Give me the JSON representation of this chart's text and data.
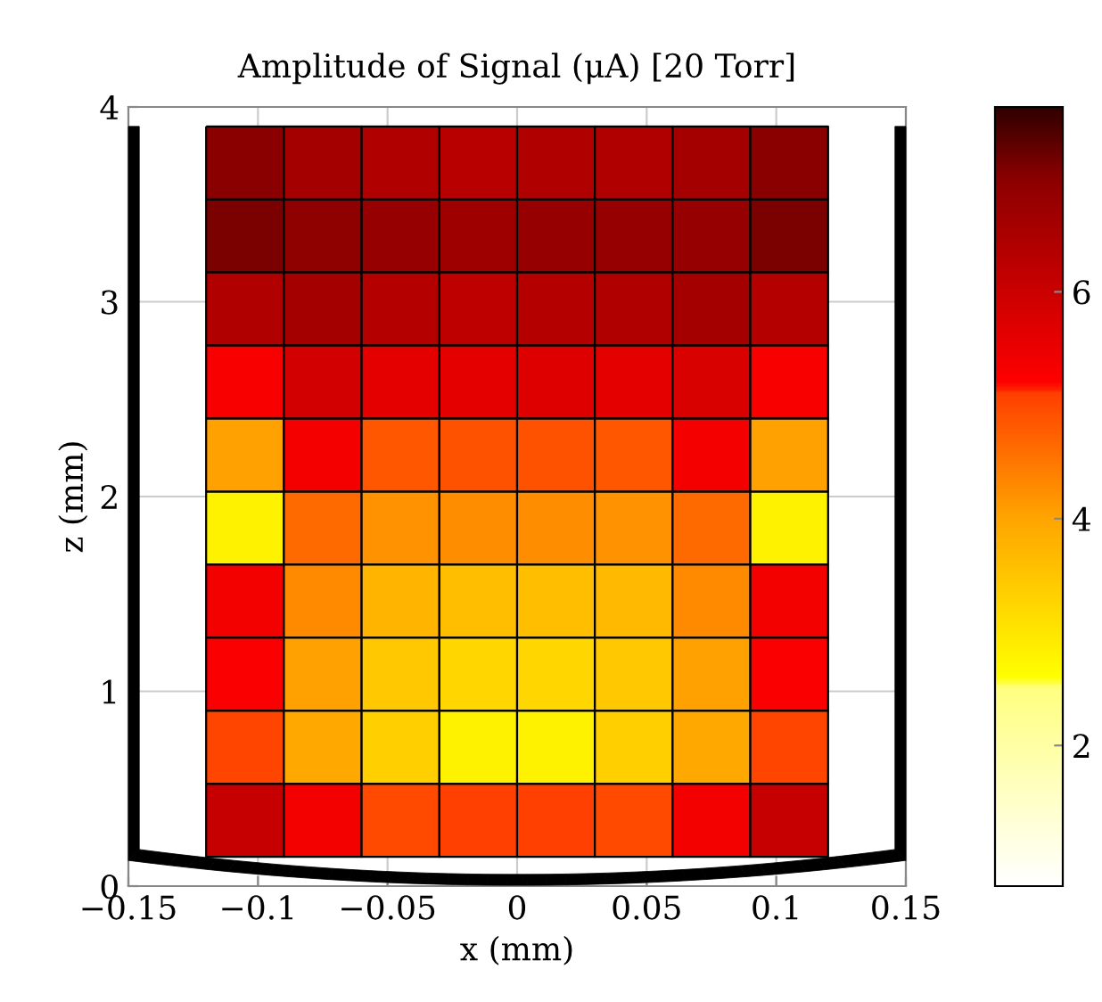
{
  "chart_data": {
    "type": "heatmap",
    "title": "Amplitude of Signal (μA) [20 Torr]",
    "xlabel": "x (mm)",
    "ylabel": "z (mm)",
    "x": [
      -0.105,
      -0.075,
      -0.045,
      -0.015,
      0.015,
      0.045,
      0.075,
      0.105
    ],
    "y": [
      3.7125,
      3.3375,
      2.9625,
      2.5875,
      2.2125,
      1.8375,
      1.4625,
      1.0875,
      0.7125,
      0.3375
    ],
    "cells": [
      [
        7.0,
        6.6,
        6.4,
        6.3,
        6.4,
        6.4,
        6.6,
        7.0
      ],
      [
        7.1,
        6.95,
        6.85,
        6.7,
        6.8,
        6.85,
        6.85,
        7.1
      ],
      [
        6.4,
        6.6,
        6.35,
        6.2,
        6.35,
        6.4,
        6.6,
        6.35
      ],
      [
        5.3,
        5.9,
        5.6,
        5.6,
        5.7,
        5.6,
        5.8,
        5.3
      ],
      [
        4.05,
        5.35,
        4.85,
        4.9,
        4.9,
        4.85,
        5.35,
        4.05
      ],
      [
        2.8,
        4.65,
        4.2,
        4.25,
        4.25,
        4.2,
        4.65,
        2.8
      ],
      [
        5.4,
        4.3,
        3.75,
        3.6,
        3.6,
        3.7,
        4.3,
        5.4
      ],
      [
        5.25,
        4.05,
        3.45,
        3.25,
        3.25,
        3.45,
        4.05,
        5.25
      ],
      [
        5.05,
        3.95,
        3.35,
        2.8,
        2.8,
        3.35,
        3.95,
        5.05
      ],
      [
        6.1,
        5.4,
        5.0,
        5.1,
        5.1,
        5.0,
        5.4,
        6.1
      ]
    ],
    "xlim": [
      -0.15,
      0.15
    ],
    "ylim": [
      0,
      4
    ],
    "xticks": [
      {
        "value": -0.15,
        "label": "−0.15"
      },
      {
        "value": -0.1,
        "label": "−0.1"
      },
      {
        "value": -0.05,
        "label": "−0.05"
      },
      0,
      0.05,
      0.1,
      0.15
    ],
    "yticks": [
      0,
      1,
      2,
      3,
      4
    ],
    "grid": true,
    "clim": [
      0.76,
      7.63
    ],
    "cticks": [
      2,
      4,
      6
    ]
  }
}
